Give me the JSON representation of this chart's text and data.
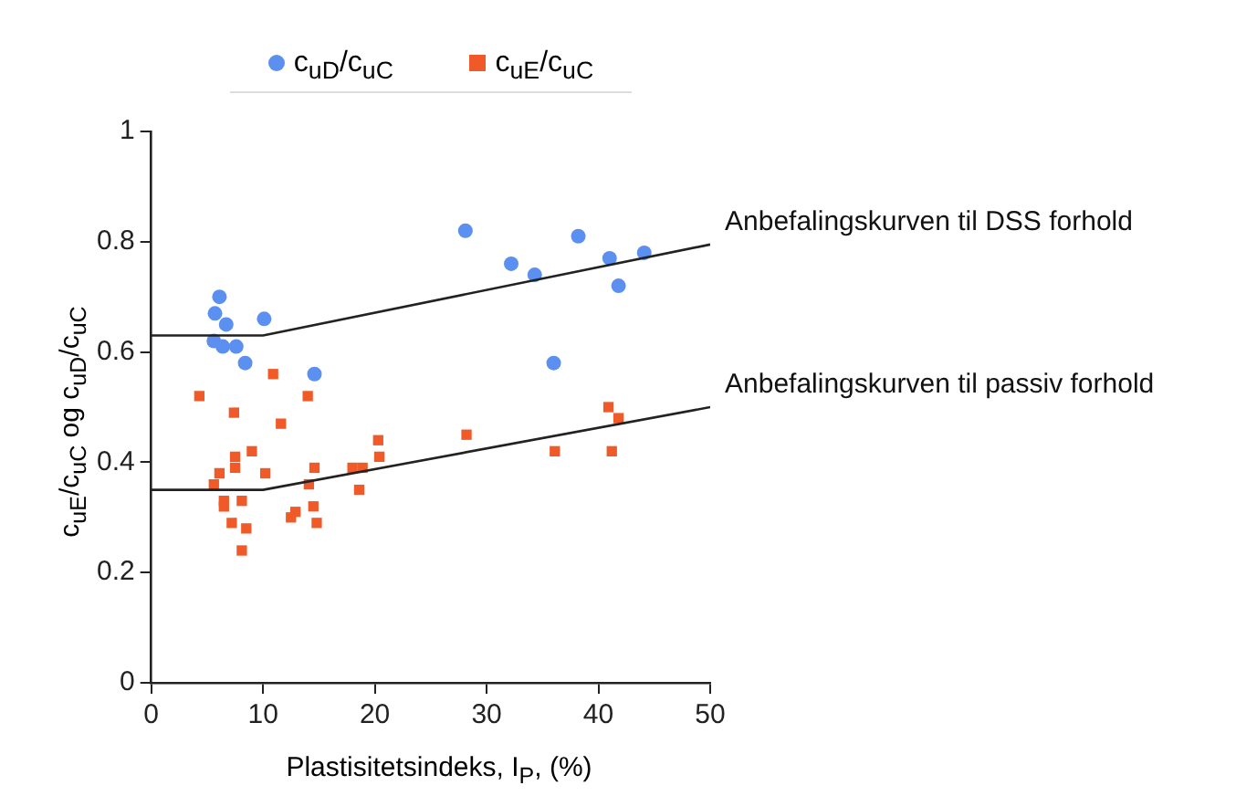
{
  "chart_data": {
    "type": "scatter",
    "xlabel": "Plastisitetsindeks, I$_{P}$, (%)",
    "ylabel": "c$_{uE}$/c$_{uC}$ og c$_{uD}$/c$_{uC}$",
    "xlim": [
      0,
      50
    ],
    "xticks": [
      0,
      10,
      20,
      30,
      40,
      50
    ],
    "ylim": [
      0,
      1
    ],
    "yticks": [
      0,
      0.2,
      0.4,
      0.6,
      0.8,
      1
    ],
    "grid": false,
    "legend": "top",
    "series": [
      {
        "name": "c$_{uD}$/c$_{uC}$",
        "color": "#5b8ff0",
        "marker": "circle",
        "x": [
          6.1,
          5.7,
          6.7,
          10.1,
          5.6,
          6.4,
          7.6,
          8.4,
          14.6,
          28.1,
          32.2,
          34.3,
          38.2,
          41.0,
          44.1,
          41.8,
          36.0
        ],
        "values": [
          0.7,
          0.67,
          0.65,
          0.66,
          0.62,
          0.61,
          0.61,
          0.58,
          0.56,
          0.82,
          0.76,
          0.74,
          0.81,
          0.77,
          0.78,
          0.72,
          0.58
        ]
      },
      {
        "name": "c$_{uE}$/c$_{uC}$",
        "color": "#f05a28",
        "marker": "square",
        "x": [
          4.3,
          10.9,
          14.0,
          7.4,
          11.6,
          20.3,
          20.4,
          9.0,
          7.5,
          7.5,
          10.2,
          14.6,
          18.0,
          18.9,
          6.1,
          5.6,
          14.1,
          18.6,
          6.5,
          6.5,
          8.1,
          14.5,
          7.2,
          8.5,
          12.9,
          12.5,
          14.8,
          8.1,
          28.2,
          36.1,
          41.2,
          40.9,
          41.8
        ],
        "values": [
          0.52,
          0.56,
          0.52,
          0.49,
          0.47,
          0.44,
          0.41,
          0.42,
          0.41,
          0.39,
          0.38,
          0.39,
          0.39,
          0.39,
          0.38,
          0.36,
          0.36,
          0.35,
          0.33,
          0.32,
          0.33,
          0.32,
          0.29,
          0.28,
          0.31,
          0.3,
          0.29,
          0.24,
          0.45,
          0.42,
          0.42,
          0.5,
          0.48
        ]
      },
      {
        "name": "Anbefalingskurven til DSS forhold",
        "type": "line",
        "color": "#222222",
        "marker": "none",
        "x": [
          0,
          10,
          50
        ],
        "values": [
          0.63,
          0.63,
          0.795
        ]
      },
      {
        "name": "Anbefalingskurven til passiv forhold",
        "type": "line",
        "color": "#222222",
        "marker": "none",
        "x": [
          0,
          10,
          50
        ],
        "values": [
          0.35,
          0.35,
          0.5
        ]
      }
    ]
  }
}
